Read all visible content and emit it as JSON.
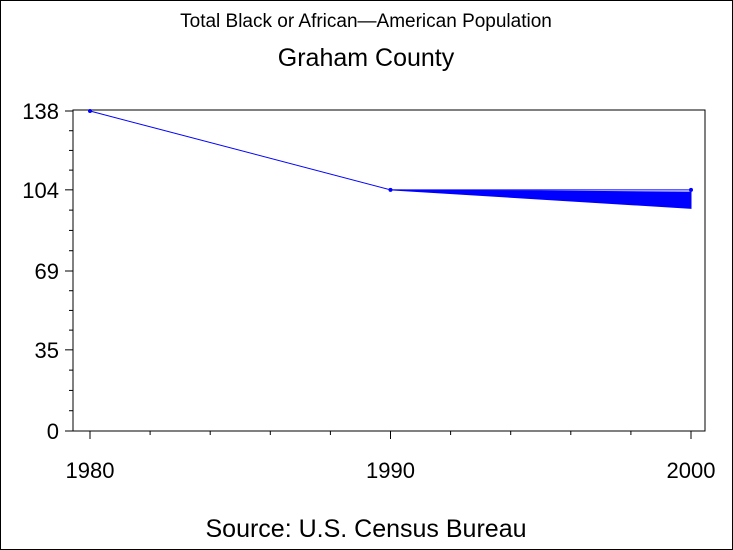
{
  "chart_data": {
    "type": "line",
    "title": "Total Black or African—American Population",
    "subtitle": "Graham County",
    "source": "Source: U.S. Census Bureau",
    "xlabel": "",
    "ylabel": "",
    "x": [
      1980,
      1990,
      2000
    ],
    "x_ticks": [
      "1980",
      "1990",
      "2000"
    ],
    "y_ticks": [
      "0",
      "35",
      "69",
      "104",
      "138"
    ],
    "y_tick_values": [
      0,
      35,
      69,
      104,
      138
    ],
    "ylim": [
      0,
      138
    ],
    "xlim": [
      1980,
      2000
    ],
    "series": [
      {
        "values": [
          138,
          104,
          104
        ],
        "color": "#0000ff"
      }
    ],
    "band": {
      "x": [
        1990,
        2000
      ],
      "upper": [
        104,
        103
      ],
      "lower": [
        104,
        96
      ],
      "color": "#0000ff"
    },
    "grid": false,
    "legend": "none"
  }
}
